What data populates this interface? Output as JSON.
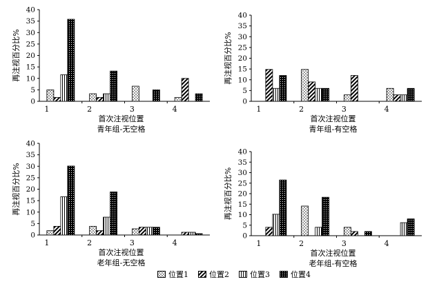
{
  "chart_data": [
    {
      "type": "bar",
      "title": "青年组-无空格",
      "xlabel": "首次注视位置",
      "ylabel": "再注视百分比%",
      "categories": [
        "1",
        "2",
        "3",
        "4"
      ],
      "ylim": [
        0,
        40
      ],
      "yticks": [
        "0",
        "5",
        "10",
        "15",
        "20",
        "25",
        "30",
        "35",
        "40"
      ],
      "series": [
        {
          "name": "位置1",
          "values": [
            5,
            3.3,
            6.6,
            1.7
          ]
        },
        {
          "name": "位置2",
          "values": [
            1.7,
            1.7,
            0,
            10
          ]
        },
        {
          "name": "位置3",
          "values": [
            11.6,
            3.3,
            0,
            0
          ]
        },
        {
          "name": "位置4",
          "values": [
            35.8,
            13.2,
            5,
            3.3
          ]
        }
      ]
    },
    {
      "type": "bar",
      "title": "青年组-有空格",
      "xlabel": "首次注视位置",
      "ylabel": "再注视百分比%",
      "categories": [
        "1",
        "2",
        "3",
        "4"
      ],
      "ylim": [
        0,
        40
      ],
      "yticks": [
        "0",
        "5",
        "10",
        "15",
        "20",
        "25",
        "30",
        "35",
        "40"
      ],
      "series": [
        {
          "name": "位置1",
          "values": [
            0,
            14.8,
            3,
            6
          ]
        },
        {
          "name": "位置2",
          "values": [
            14.8,
            9,
            12,
            3
          ]
        },
        {
          "name": "位置3",
          "values": [
            6,
            6,
            0,
            3
          ]
        },
        {
          "name": "位置4",
          "values": [
            12,
            6,
            0,
            6
          ]
        }
      ]
    },
    {
      "type": "bar",
      "title": "老年组-无空格",
      "xlabel": "首次注视位置",
      "ylabel": "再注视百分比%",
      "categories": [
        "1",
        "2",
        "3",
        "4"
      ],
      "ylim": [
        0,
        40
      ],
      "yticks": [
        "0",
        "5",
        "10",
        "15",
        "20",
        "25",
        "30",
        "35",
        "40"
      ],
      "series": [
        {
          "name": "位置1",
          "values": [
            1.9,
            3.8,
            2.7,
            0
          ]
        },
        {
          "name": "位置2",
          "values": [
            3.8,
            1.9,
            3.4,
            1.2
          ]
        },
        {
          "name": "位置3",
          "values": [
            16.7,
            7.8,
            3.4,
            1.2
          ]
        },
        {
          "name": "位置4",
          "values": [
            30.1,
            18.8,
            3.4,
            0.6
          ]
        }
      ]
    },
    {
      "type": "bar",
      "title": "老年组-有空格",
      "xlabel": "首次注视位置",
      "ylabel": "再注视百分比%",
      "categories": [
        "1",
        "2",
        "3",
        "4"
      ],
      "ylim": [
        0,
        40
      ],
      "yticks": [
        "0",
        "5",
        "10",
        "15",
        "20",
        "25",
        "30",
        "35",
        "40"
      ],
      "series": [
        {
          "name": "位置1",
          "values": [
            0,
            14.1,
            4,
            0
          ]
        },
        {
          "name": "位置2",
          "values": [
            4,
            0,
            2,
            0
          ]
        },
        {
          "name": "位置3",
          "values": [
            10.2,
            4,
            0,
            6.2
          ]
        },
        {
          "name": "位置4",
          "values": [
            26.5,
            18.3,
            2,
            8
          ]
        }
      ]
    }
  ],
  "legend": {
    "placement": "bottom-center",
    "items": [
      {
        "label": "位置1",
        "pattern": "dots"
      },
      {
        "label": "位置2",
        "pattern": "diagonal"
      },
      {
        "label": "位置3",
        "pattern": "vertical"
      },
      {
        "label": "位置4",
        "pattern": "solid-dots"
      }
    ]
  },
  "colors": {
    "ink": "#000000",
    "paper": "#ffffff"
  }
}
